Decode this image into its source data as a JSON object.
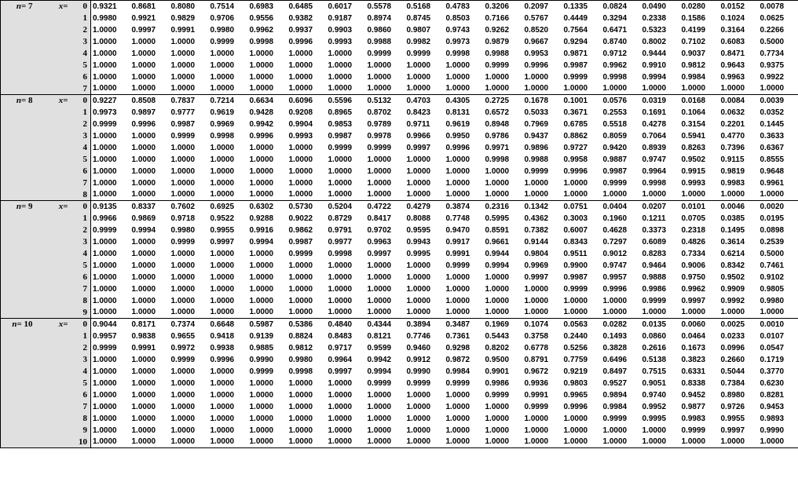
{
  "label_bg": "#e0e0e0",
  "border_color": "#000000",
  "font_label": "Times New Roman",
  "font_data": "Arial",
  "data_fontsize": 10,
  "label_fontsize": 11,
  "blocks": [
    {
      "n": 7,
      "rows": [
        {
          "x": 0,
          "v": [
            "0.9321",
            "0.8681",
            "0.8080",
            "0.7514",
            "0.6983",
            "0.6485",
            "0.6017",
            "0.5578",
            "0.5168",
            "0.4783",
            "0.3206",
            "0.2097",
            "0.1335",
            "0.0824",
            "0.0490",
            "0.0280",
            "0.0152",
            "0.0078"
          ]
        },
        {
          "x": 1,
          "v": [
            "0.9980",
            "0.9921",
            "0.9829",
            "0.9706",
            "0.9556",
            "0.9382",
            "0.9187",
            "0.8974",
            "0.8745",
            "0.8503",
            "0.7166",
            "0.5767",
            "0.4449",
            "0.3294",
            "0.2338",
            "0.1586",
            "0.1024",
            "0.0625"
          ]
        },
        {
          "x": 2,
          "v": [
            "1.0000",
            "0.9997",
            "0.9991",
            "0.9980",
            "0.9962",
            "0.9937",
            "0.9903",
            "0.9860",
            "0.9807",
            "0.9743",
            "0.9262",
            "0.8520",
            "0.7564",
            "0.6471",
            "0.5323",
            "0.4199",
            "0.3164",
            "0.2266"
          ]
        },
        {
          "x": 3,
          "v": [
            "1.0000",
            "1.0000",
            "1.0000",
            "0.9999",
            "0.9998",
            "0.9996",
            "0.9993",
            "0.9988",
            "0.9982",
            "0.9973",
            "0.9879",
            "0.9667",
            "0.9294",
            "0.8740",
            "0.8002",
            "0.7102",
            "0.6083",
            "0.5000"
          ]
        },
        {
          "x": 4,
          "v": [
            "1.0000",
            "1.0000",
            "1.0000",
            "1.0000",
            "1.0000",
            "1.0000",
            "1.0000",
            "0.9999",
            "0.9999",
            "0.9998",
            "0.9988",
            "0.9953",
            "0.9871",
            "0.9712",
            "0.9444",
            "0.9037",
            "0.8471",
            "0.7734"
          ]
        },
        {
          "x": 5,
          "v": [
            "1.0000",
            "1.0000",
            "1.0000",
            "1.0000",
            "1.0000",
            "1.0000",
            "1.0000",
            "1.0000",
            "1.0000",
            "1.0000",
            "0.9999",
            "0.9996",
            "0.9987",
            "0.9962",
            "0.9910",
            "0.9812",
            "0.9643",
            "0.9375"
          ]
        },
        {
          "x": 6,
          "v": [
            "1.0000",
            "1.0000",
            "1.0000",
            "1.0000",
            "1.0000",
            "1.0000",
            "1.0000",
            "1.0000",
            "1.0000",
            "1.0000",
            "1.0000",
            "1.0000",
            "0.9999",
            "0.9998",
            "0.9994",
            "0.9984",
            "0.9963",
            "0.9922"
          ]
        },
        {
          "x": 7,
          "v": [
            "1.0000",
            "1.0000",
            "1.0000",
            "1.0000",
            "1.0000",
            "1.0000",
            "1.0000",
            "1.0000",
            "1.0000",
            "1.0000",
            "1.0000",
            "1.0000",
            "1.0000",
            "1.0000",
            "1.0000",
            "1.0000",
            "1.0000",
            "1.0000"
          ]
        }
      ]
    },
    {
      "n": 8,
      "rows": [
        {
          "x": 0,
          "v": [
            "0.9227",
            "0.8508",
            "0.7837",
            "0.7214",
            "0.6634",
            "0.6096",
            "0.5596",
            "0.5132",
            "0.4703",
            "0.4305",
            "0.2725",
            "0.1678",
            "0.1001",
            "0.0576",
            "0.0319",
            "0.0168",
            "0.0084",
            "0.0039"
          ]
        },
        {
          "x": 1,
          "v": [
            "0.9973",
            "0.9897",
            "0.9777",
            "0.9619",
            "0.9428",
            "0.9208",
            "0.8965",
            "0.8702",
            "0.8423",
            "0.8131",
            "0.6572",
            "0.5033",
            "0.3671",
            "0.2553",
            "0.1691",
            "0.1064",
            "0.0632",
            "0.0352"
          ]
        },
        {
          "x": 2,
          "v": [
            "0.9999",
            "0.9996",
            "0.9987",
            "0.9969",
            "0.9942",
            "0.9904",
            "0.9853",
            "0.9789",
            "0.9711",
            "0.9619",
            "0.8948",
            "0.7969",
            "0.6785",
            "0.5518",
            "0.4278",
            "0.3154",
            "0.2201",
            "0.1445"
          ]
        },
        {
          "x": 3,
          "v": [
            "1.0000",
            "1.0000",
            "0.9999",
            "0.9998",
            "0.9996",
            "0.9993",
            "0.9987",
            "0.9978",
            "0.9966",
            "0.9950",
            "0.9786",
            "0.9437",
            "0.8862",
            "0.8059",
            "0.7064",
            "0.5941",
            "0.4770",
            "0.3633"
          ]
        },
        {
          "x": 4,
          "v": [
            "1.0000",
            "1.0000",
            "1.0000",
            "1.0000",
            "1.0000",
            "1.0000",
            "0.9999",
            "0.9999",
            "0.9997",
            "0.9996",
            "0.9971",
            "0.9896",
            "0.9727",
            "0.9420",
            "0.8939",
            "0.8263",
            "0.7396",
            "0.6367"
          ]
        },
        {
          "x": 5,
          "v": [
            "1.0000",
            "1.0000",
            "1.0000",
            "1.0000",
            "1.0000",
            "1.0000",
            "1.0000",
            "1.0000",
            "1.0000",
            "1.0000",
            "0.9998",
            "0.9988",
            "0.9958",
            "0.9887",
            "0.9747",
            "0.9502",
            "0.9115",
            "0.8555"
          ]
        },
        {
          "x": 6,
          "v": [
            "1.0000",
            "1.0000",
            "1.0000",
            "1.0000",
            "1.0000",
            "1.0000",
            "1.0000",
            "1.0000",
            "1.0000",
            "1.0000",
            "1.0000",
            "0.9999",
            "0.9996",
            "0.9987",
            "0.9964",
            "0.9915",
            "0.9819",
            "0.9648"
          ]
        },
        {
          "x": 7,
          "v": [
            "1.0000",
            "1.0000",
            "1.0000",
            "1.0000",
            "1.0000",
            "1.0000",
            "1.0000",
            "1.0000",
            "1.0000",
            "1.0000",
            "1.0000",
            "1.0000",
            "1.0000",
            "0.9999",
            "0.9998",
            "0.9993",
            "0.9983",
            "0.9961"
          ]
        },
        {
          "x": 8,
          "v": [
            "1.0000",
            "1.0000",
            "1.0000",
            "1.0000",
            "1.0000",
            "1.0000",
            "1.0000",
            "1.0000",
            "1.0000",
            "1.0000",
            "1.0000",
            "1.0000",
            "1.0000",
            "1.0000",
            "1.0000",
            "1.0000",
            "1.0000",
            "1.0000"
          ]
        }
      ]
    },
    {
      "n": 9,
      "rows": [
        {
          "x": 0,
          "v": [
            "0.9135",
            "0.8337",
            "0.7602",
            "0.6925",
            "0.6302",
            "0.5730",
            "0.5204",
            "0.4722",
            "0.4279",
            "0.3874",
            "0.2316",
            "0.1342",
            "0.0751",
            "0.0404",
            "0.0207",
            "0.0101",
            "0.0046",
            "0.0020"
          ]
        },
        {
          "x": 1,
          "v": [
            "0.9966",
            "0.9869",
            "0.9718",
            "0.9522",
            "0.9288",
            "0.9022",
            "0.8729",
            "0.8417",
            "0.8088",
            "0.7748",
            "0.5995",
            "0.4362",
            "0.3003",
            "0.1960",
            "0.1211",
            "0.0705",
            "0.0385",
            "0.0195"
          ]
        },
        {
          "x": 2,
          "v": [
            "0.9999",
            "0.9994",
            "0.9980",
            "0.9955",
            "0.9916",
            "0.9862",
            "0.9791",
            "0.9702",
            "0.9595",
            "0.9470",
            "0.8591",
            "0.7382",
            "0.6007",
            "0.4628",
            "0.3373",
            "0.2318",
            "0.1495",
            "0.0898"
          ]
        },
        {
          "x": 3,
          "v": [
            "1.0000",
            "1.0000",
            "0.9999",
            "0.9997",
            "0.9994",
            "0.9987",
            "0.9977",
            "0.9963",
            "0.9943",
            "0.9917",
            "0.9661",
            "0.9144",
            "0.8343",
            "0.7297",
            "0.6089",
            "0.4826",
            "0.3614",
            "0.2539"
          ]
        },
        {
          "x": 4,
          "v": [
            "1.0000",
            "1.0000",
            "1.0000",
            "1.0000",
            "1.0000",
            "0.9999",
            "0.9998",
            "0.9997",
            "0.9995",
            "0.9991",
            "0.9944",
            "0.9804",
            "0.9511",
            "0.9012",
            "0.8283",
            "0.7334",
            "0.6214",
            "0.5000"
          ]
        },
        {
          "x": 5,
          "v": [
            "1.0000",
            "1.0000",
            "1.0000",
            "1.0000",
            "1.0000",
            "1.0000",
            "1.0000",
            "1.0000",
            "1.0000",
            "0.9999",
            "0.9994",
            "0.9969",
            "0.9900",
            "0.9747",
            "0.9464",
            "0.9006",
            "0.8342",
            "0.7461"
          ]
        },
        {
          "x": 6,
          "v": [
            "1.0000",
            "1.0000",
            "1.0000",
            "1.0000",
            "1.0000",
            "1.0000",
            "1.0000",
            "1.0000",
            "1.0000",
            "1.0000",
            "1.0000",
            "0.9997",
            "0.9987",
            "0.9957",
            "0.9888",
            "0.9750",
            "0.9502",
            "0.9102"
          ]
        },
        {
          "x": 7,
          "v": [
            "1.0000",
            "1.0000",
            "1.0000",
            "1.0000",
            "1.0000",
            "1.0000",
            "1.0000",
            "1.0000",
            "1.0000",
            "1.0000",
            "1.0000",
            "1.0000",
            "0.9999",
            "0.9996",
            "0.9986",
            "0.9962",
            "0.9909",
            "0.9805"
          ]
        },
        {
          "x": 8,
          "v": [
            "1.0000",
            "1.0000",
            "1.0000",
            "1.0000",
            "1.0000",
            "1.0000",
            "1.0000",
            "1.0000",
            "1.0000",
            "1.0000",
            "1.0000",
            "1.0000",
            "1.0000",
            "1.0000",
            "0.9999",
            "0.9997",
            "0.9992",
            "0.9980"
          ]
        },
        {
          "x": 9,
          "v": [
            "1.0000",
            "1.0000",
            "1.0000",
            "1.0000",
            "1.0000",
            "1.0000",
            "1.0000",
            "1.0000",
            "1.0000",
            "1.0000",
            "1.0000",
            "1.0000",
            "1.0000",
            "1.0000",
            "1.0000",
            "1.0000",
            "1.0000",
            "1.0000"
          ]
        }
      ]
    },
    {
      "n": 10,
      "rows": [
        {
          "x": 0,
          "v": [
            "0.9044",
            "0.8171",
            "0.7374",
            "0.6648",
            "0.5987",
            "0.5386",
            "0.4840",
            "0.4344",
            "0.3894",
            "0.3487",
            "0.1969",
            "0.1074",
            "0.0563",
            "0.0282",
            "0.0135",
            "0.0060",
            "0.0025",
            "0.0010"
          ]
        },
        {
          "x": 1,
          "v": [
            "0.9957",
            "0.9838",
            "0.9655",
            "0.9418",
            "0.9139",
            "0.8824",
            "0.8483",
            "0.8121",
            "0.7746",
            "0.7361",
            "0.5443",
            "0.3758",
            "0.2440",
            "0.1493",
            "0.0860",
            "0.0464",
            "0.0233",
            "0.0107"
          ]
        },
        {
          "x": 2,
          "v": [
            "0.9999",
            "0.9991",
            "0.9972",
            "0.9938",
            "0.9885",
            "0.9812",
            "0.9717",
            "0.9599",
            "0.9460",
            "0.9298",
            "0.8202",
            "0.6778",
            "0.5256",
            "0.3828",
            "0.2616",
            "0.1673",
            "0.0996",
            "0.0547"
          ]
        },
        {
          "x": 3,
          "v": [
            "1.0000",
            "1.0000",
            "0.9999",
            "0.9996",
            "0.9990",
            "0.9980",
            "0.9964",
            "0.9942",
            "0.9912",
            "0.9872",
            "0.9500",
            "0.8791",
            "0.7759",
            "0.6496",
            "0.5138",
            "0.3823",
            "0.2660",
            "0.1719"
          ]
        },
        {
          "x": 4,
          "v": [
            "1.0000",
            "1.0000",
            "1.0000",
            "1.0000",
            "0.9999",
            "0.9998",
            "0.9997",
            "0.9994",
            "0.9990",
            "0.9984",
            "0.9901",
            "0.9672",
            "0.9219",
            "0.8497",
            "0.7515",
            "0.6331",
            "0.5044",
            "0.3770"
          ]
        },
        {
          "x": 5,
          "v": [
            "1.0000",
            "1.0000",
            "1.0000",
            "1.0000",
            "1.0000",
            "1.0000",
            "1.0000",
            "0.9999",
            "0.9999",
            "0.9999",
            "0.9986",
            "0.9936",
            "0.9803",
            "0.9527",
            "0.9051",
            "0.8338",
            "0.7384",
            "0.6230"
          ]
        },
        {
          "x": 6,
          "v": [
            "1.0000",
            "1.0000",
            "1.0000",
            "1.0000",
            "1.0000",
            "1.0000",
            "1.0000",
            "1.0000",
            "1.0000",
            "1.0000",
            "0.9999",
            "0.9991",
            "0.9965",
            "0.9894",
            "0.9740",
            "0.9452",
            "0.8980",
            "0.8281"
          ]
        },
        {
          "x": 7,
          "v": [
            "1.0000",
            "1.0000",
            "1.0000",
            "1.0000",
            "1.0000",
            "1.0000",
            "1.0000",
            "1.0000",
            "1.0000",
            "1.0000",
            "1.0000",
            "0.9999",
            "0.9996",
            "0.9984",
            "0.9952",
            "0.9877",
            "0.9726",
            "0.9453"
          ]
        },
        {
          "x": 8,
          "v": [
            "1.0000",
            "1.0000",
            "1.0000",
            "1.0000",
            "1.0000",
            "1.0000",
            "1.0000",
            "1.0000",
            "1.0000",
            "1.0000",
            "1.0000",
            "1.0000",
            "1.0000",
            "0.9999",
            "0.9995",
            "0.9983",
            "0.9955",
            "0.9893"
          ]
        },
        {
          "x": 9,
          "v": [
            "1.0000",
            "1.0000",
            "1.0000",
            "1.0000",
            "1.0000",
            "1.0000",
            "1.0000",
            "1.0000",
            "1.0000",
            "1.0000",
            "1.0000",
            "1.0000",
            "1.0000",
            "1.0000",
            "1.0000",
            "0.9999",
            "0.9997",
            "0.9990"
          ]
        },
        {
          "x": 10,
          "v": [
            "1.0000",
            "1.0000",
            "1.0000",
            "1.0000",
            "1.0000",
            "1.0000",
            "1.0000",
            "1.0000",
            "1.0000",
            "1.0000",
            "1.0000",
            "1.0000",
            "1.0000",
            "1.0000",
            "1.0000",
            "1.0000",
            "1.0000",
            "1.0000"
          ]
        }
      ]
    }
  ]
}
